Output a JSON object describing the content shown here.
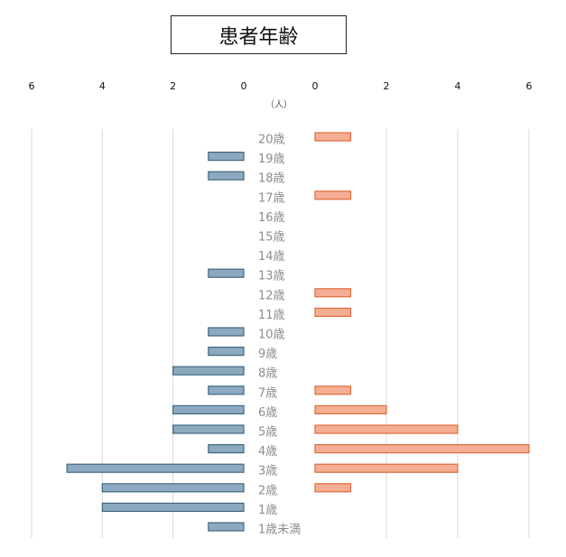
{
  "chart_data": {
    "type": "bar",
    "title": "患者年齢",
    "unit_label": "（人）",
    "categories": [
      "20歳",
      "19歳",
      "18歳",
      "17歳",
      "16歳",
      "15歳",
      "14歳",
      "13歳",
      "12歳",
      "11歳",
      "10歳",
      "9歳",
      "8歳",
      "7歳",
      "6歳",
      "5歳",
      "4歳",
      "3歳",
      "2歳",
      "1歳",
      "1歳未満"
    ],
    "series": [
      {
        "values": [
          0,
          1,
          1,
          0,
          0,
          0,
          0,
          1,
          0,
          0,
          1,
          1,
          2,
          1,
          2,
          2,
          1,
          5,
          4,
          4,
          1
        ],
        "color": "#8da9bf",
        "stroke": "#3f6880",
        "side": "left"
      },
      {
        "values": [
          1,
          0,
          0,
          1,
          0,
          0,
          0,
          0,
          1,
          1,
          0,
          0,
          0,
          1,
          2,
          4,
          6,
          4,
          1,
          0,
          0
        ],
        "color": "#f4ae93",
        "stroke": "#e06b3c",
        "side": "right"
      }
    ],
    "left_axis": {
      "ticks": [
        "6",
        "4",
        "2",
        "0"
      ],
      "range": [
        0,
        6
      ],
      "reversed": true
    },
    "right_axis": {
      "ticks": [
        "0",
        "2",
        "4",
        "6"
      ],
      "range": [
        0,
        6
      ]
    },
    "grid": true
  }
}
